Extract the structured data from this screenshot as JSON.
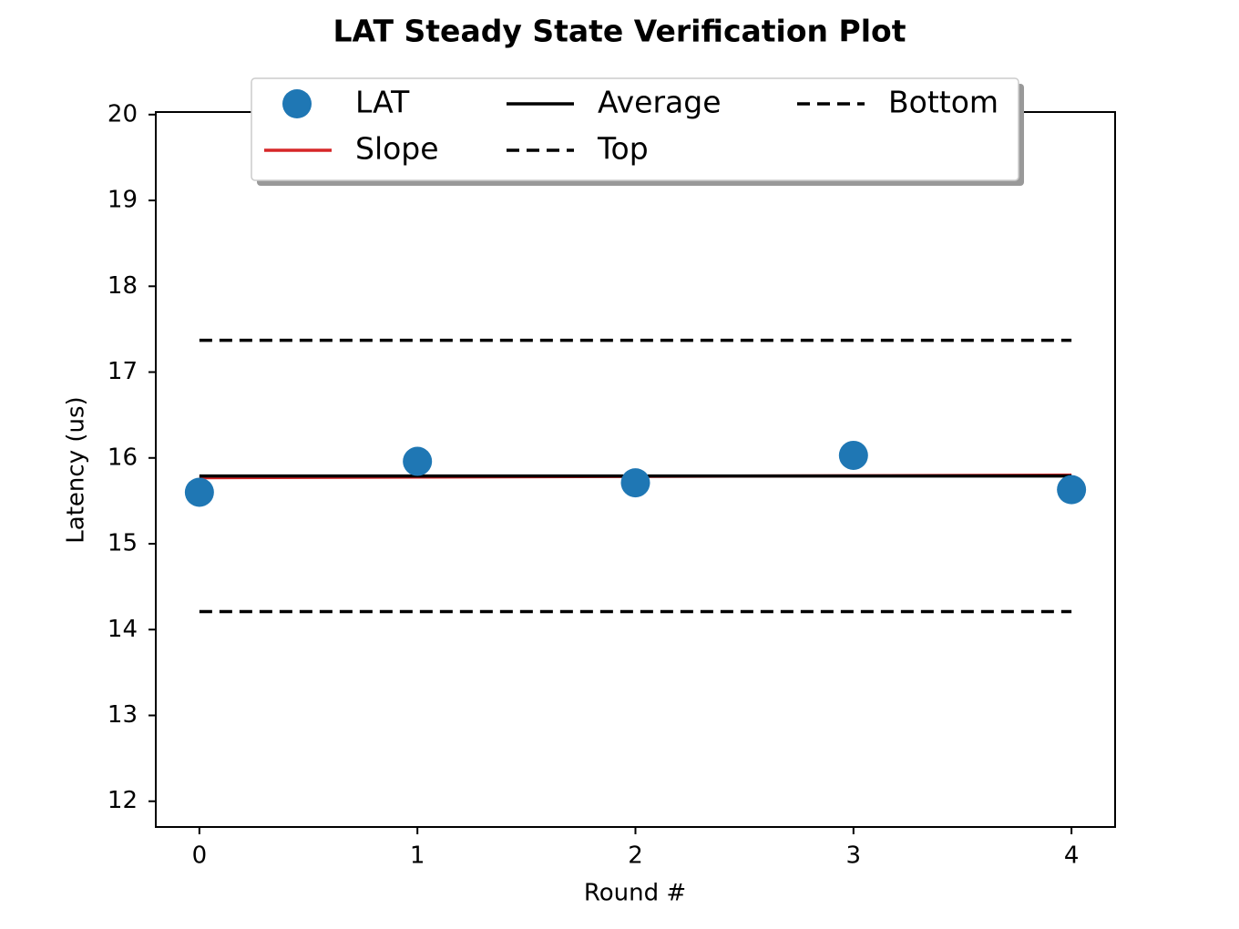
{
  "chart_data": {
    "type": "scatter",
    "title": "LAT Steady State Verification Plot",
    "x_label": "Round #",
    "y_label": "Latency (us)",
    "xlim": [
      -0.2,
      4.2
    ],
    "xticks": [
      0,
      1,
      2,
      3,
      4
    ],
    "ylim": [
      11.7,
      20.03
    ],
    "yticks": [
      12,
      13,
      14,
      15,
      16,
      17,
      18,
      19,
      20
    ],
    "legend": "upper center",
    "series": [
      {
        "name": "LAT",
        "type": "scatter",
        "color": "#1f77b4",
        "x": [
          0,
          1,
          2,
          3,
          4
        ],
        "values": [
          15.6,
          15.96,
          15.71,
          16.03,
          15.63
        ]
      },
      {
        "name": "Slope",
        "type": "line",
        "color": "#d62728",
        "dashed": false,
        "x": [
          0,
          4
        ],
        "values": [
          15.77,
          15.8
        ]
      },
      {
        "name": "Average",
        "type": "line",
        "color": "#000000",
        "dashed": false,
        "x": [
          0,
          4
        ],
        "values": [
          15.79,
          15.79
        ]
      },
      {
        "name": "Top",
        "type": "line",
        "color": "#000000",
        "dashed": true,
        "x": [
          0,
          4
        ],
        "values": [
          17.37,
          17.37
        ]
      },
      {
        "name": "Bottom",
        "type": "line",
        "color": "#000000",
        "dashed": true,
        "x": [
          0,
          4
        ],
        "values": [
          14.21,
          14.21
        ]
      }
    ]
  }
}
